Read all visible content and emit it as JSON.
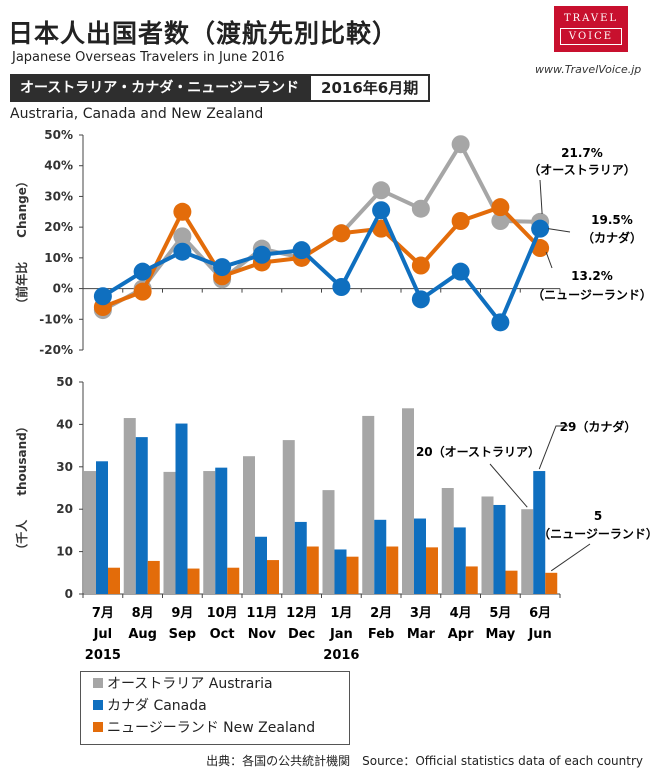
{
  "header": {
    "title": "日本人出国者数（渡航先別比較）",
    "subtitle": "Japanese Overseas Travelers in June 2016",
    "region": "オーストラリア・カナダ・ニュージーランド",
    "period": "2016年6月期",
    "region_en": "Austraria, Canada and New Zealand",
    "logo_top": "TRAVEL",
    "logo_bottom": "VOICE",
    "site": "www.TravelVoice.jp"
  },
  "colors": {
    "australia": "#a6a6a6",
    "canada": "#0f6fbf",
    "newzealand": "#e36c0a"
  },
  "chart_data": [
    {
      "type": "line",
      "ylabel": "（前年比　　Change）",
      "ylim": [
        -20,
        50
      ],
      "yticks": [
        "-20%",
        "-10%",
        "0%",
        "10%",
        "20%",
        "30%",
        "40%",
        "50%"
      ],
      "categories": [
        "7月 Jul",
        "8月 Aug",
        "9月 Sep",
        "10月 Oct",
        "11月 Nov",
        "12月 Dec",
        "1月 Jan",
        "2月 Feb",
        "3月 Mar",
        "4月 Apr",
        "5月 May",
        "6月 Jun"
      ],
      "series": [
        {
          "name": "オーストラリア Austraria",
          "key": "australia",
          "values": [
            -7,
            0,
            17,
            3,
            13,
            10,
            18,
            32,
            26,
            47,
            22,
            21.7
          ]
        },
        {
          "name": "カナダ Canada",
          "key": "canada",
          "values": [
            -2.5,
            5.5,
            12,
            7,
            11,
            12.5,
            0.5,
            25.5,
            -3.5,
            5.5,
            -11,
            19.5
          ]
        },
        {
          "name": "ニュージーランド New Zealand",
          "key": "newzealand",
          "values": [
            -6,
            -1,
            25,
            4,
            8.5,
            10,
            18,
            19.5,
            7.5,
            22,
            26.5,
            13.2
          ]
        }
      ],
      "annotations": [
        {
          "text": "21.7%",
          "sub": "（オーストラリア）",
          "series": "australia"
        },
        {
          "text": "19.5%",
          "sub": "（カナダ）",
          "series": "canada"
        },
        {
          "text": "13.2%",
          "sub": "（ニュージーランド）",
          "series": "newzealand"
        }
      ]
    },
    {
      "type": "bar",
      "ylabel": "（千人　　thousand）",
      "ylim": [
        0,
        50
      ],
      "yticks": [
        "0",
        "10",
        "20",
        "30",
        "40",
        "50"
      ],
      "categories": [
        {
          "jp": "7月",
          "en": "Jul",
          "year": "2015"
        },
        {
          "jp": "8月",
          "en": "Aug",
          "year": ""
        },
        {
          "jp": "9月",
          "en": "Sep",
          "year": ""
        },
        {
          "jp": "10月",
          "en": "Oct",
          "year": ""
        },
        {
          "jp": "11月",
          "en": "Nov",
          "year": ""
        },
        {
          "jp": "12月",
          "en": "Dec",
          "year": ""
        },
        {
          "jp": "1月",
          "en": "Jan",
          "year": "2016"
        },
        {
          "jp": "2月",
          "en": "Feb",
          "year": ""
        },
        {
          "jp": "3月",
          "en": "Mar",
          "year": ""
        },
        {
          "jp": "4月",
          "en": "Apr",
          "year": ""
        },
        {
          "jp": "5月",
          "en": "May",
          "year": ""
        },
        {
          "jp": "6月",
          "en": "Jun",
          "year": ""
        }
      ],
      "series": [
        {
          "name": "オーストラリア Austraria",
          "key": "australia",
          "values": [
            29,
            41.5,
            28.8,
            29,
            32.5,
            36.3,
            24.5,
            42,
            43.8,
            25,
            23,
            20
          ]
        },
        {
          "name": "カナダ Canada",
          "key": "canada",
          "values": [
            31.3,
            37,
            40.2,
            29.8,
            13.5,
            17,
            10.5,
            17.5,
            17.8,
            15.7,
            21,
            29
          ]
        },
        {
          "name": "ニュージーランド New Zealand",
          "key": "newzealand",
          "values": [
            6.2,
            7.8,
            6,
            6.2,
            8,
            11.2,
            8.8,
            11.2,
            11,
            6.5,
            5.5,
            5
          ]
        }
      ],
      "annotations": [
        {
          "text": "20（オーストラリア）",
          "series": "australia"
        },
        {
          "text": "29（カナダ）",
          "series": "canada"
        },
        {
          "text": "5",
          "sub": "（ニュージーランド）",
          "series": "newzealand"
        }
      ]
    }
  ],
  "legend": [
    {
      "label": "オーストラリア Austraria",
      "key": "australia"
    },
    {
      "label": "カナダ Canada",
      "key": "canada"
    },
    {
      "label": "ニュージーランド New Zealand",
      "key": "newzealand"
    }
  ],
  "source": "出典：各国の公共統計機関　Source：Official statistics data of each country"
}
